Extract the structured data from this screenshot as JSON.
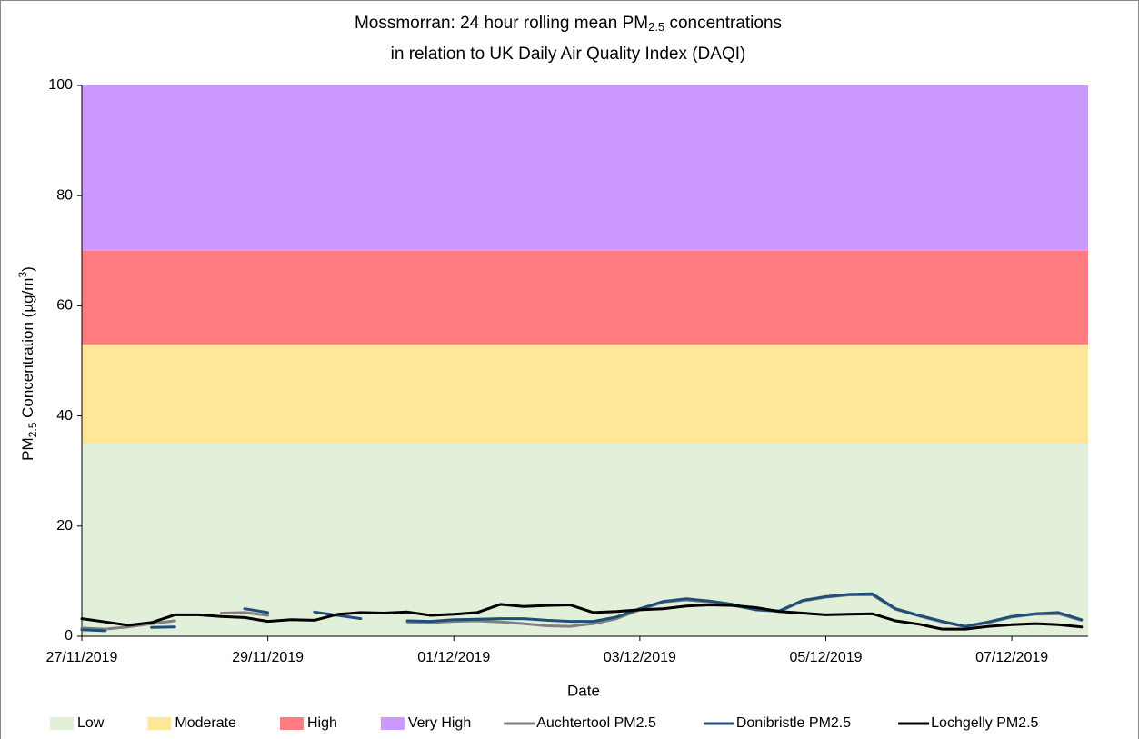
{
  "chart_data": {
    "type": "line",
    "title": {
      "line1": [
        "Mossmorran: 24 hour rolling mean PM",
        "2.5",
        " concentrations"
      ],
      "line2": "in relation to UK Daily Air Quality Index (DAQI)"
    },
    "xlabel": "Date",
    "ylabel": [
      "PM",
      "2.5",
      " Concentration (µg/m",
      "3",
      ")"
    ],
    "bands": [
      {
        "name": "Low",
        "color": "#e2efd9",
        "range": [
          0,
          35
        ]
      },
      {
        "name": "Moderate",
        "color": "#ffe699",
        "range": [
          35,
          53
        ]
      },
      {
        "name": "High",
        "color": "#ff7c80",
        "range": [
          53,
          70
        ]
      },
      {
        "name": "Very High",
        "color": "#cc99ff",
        "range": [
          70,
          100
        ]
      }
    ],
    "x": [
      0,
      0.25,
      0.5,
      0.75,
      1,
      1.25,
      1.5,
      1.75,
      2,
      2.25,
      2.5,
      2.75,
      3,
      3.25,
      3.5,
      3.75,
      4,
      4.25,
      4.5,
      4.75,
      5,
      5.25,
      5.5,
      5.75,
      6,
      6.25,
      6.5,
      6.75,
      7,
      7.25,
      7.5,
      7.75,
      8,
      8.25,
      8.5,
      8.75,
      9,
      9.25,
      9.5,
      9.75,
      10,
      10.25,
      10.5,
      10.75
    ],
    "series": [
      {
        "name": "Auchtertool PM2.5",
        "color": "#808080",
        "values": [
          1.5,
          1.3,
          1.7,
          2.3,
          2.8,
          null,
          4.2,
          4.3,
          3.8,
          null,
          null,
          null,
          null,
          null,
          2.6,
          2.5,
          2.7,
          2.8,
          2.6,
          2.3,
          1.9,
          1.8,
          2.3,
          3.2,
          4.8,
          6.2,
          6.6,
          6.2,
          5.6,
          4.8,
          4.5,
          6.4,
          7.1,
          7.5,
          7.5,
          4.9,
          3.7,
          2.6,
          1.7,
          2.5,
          3.5,
          4.0,
          4.1,
          2.9
        ]
      },
      {
        "name": "Donibristle PM2.5",
        "color": "#1f4e79",
        "values": [
          1.2,
          1.0,
          null,
          1.6,
          1.7,
          null,
          null,
          5.0,
          4.3,
          null,
          4.4,
          3.8,
          3.2,
          null,
          2.8,
          2.7,
          3.0,
          3.1,
          3.2,
          3.2,
          2.9,
          2.7,
          2.7,
          3.5,
          5.0,
          6.3,
          6.8,
          6.4,
          5.8,
          4.8,
          4.6,
          6.5,
          7.2,
          7.6,
          7.7,
          5.0,
          3.8,
          2.7,
          1.8,
          2.6,
          3.6,
          4.1,
          4.3,
          3.0
        ]
      },
      {
        "name": "Lochgelly PM2.5",
        "color": "#000000",
        "values": [
          3.2,
          2.6,
          2.0,
          2.5,
          3.9,
          3.9,
          3.6,
          3.4,
          2.7,
          3.0,
          2.9,
          4.0,
          4.3,
          4.2,
          4.4,
          3.8,
          4.0,
          4.3,
          5.8,
          5.4,
          5.6,
          5.7,
          4.3,
          4.5,
          4.8,
          5.0,
          5.5,
          5.7,
          5.6,
          5.2,
          4.5,
          4.2,
          3.9,
          4.0,
          4.1,
          2.8,
          2.2,
          1.3,
          1.3,
          1.8,
          2.1,
          2.3,
          2.1,
          1.7
        ]
      }
    ],
    "xlim": [
      0,
      10.82
    ],
    "xticks": [
      {
        "value": 0,
        "label": "27/11/2019"
      },
      {
        "value": 2,
        "label": "29/11/2019"
      },
      {
        "value": 4,
        "label": "01/12/2019"
      },
      {
        "value": 6,
        "label": "03/12/2019"
      },
      {
        "value": 8,
        "label": "05/12/2019"
      },
      {
        "value": 10,
        "label": "07/12/2019"
      }
    ],
    "ylim": [
      0,
      100
    ],
    "yticks": [
      0,
      20,
      40,
      60,
      80,
      100
    ]
  }
}
